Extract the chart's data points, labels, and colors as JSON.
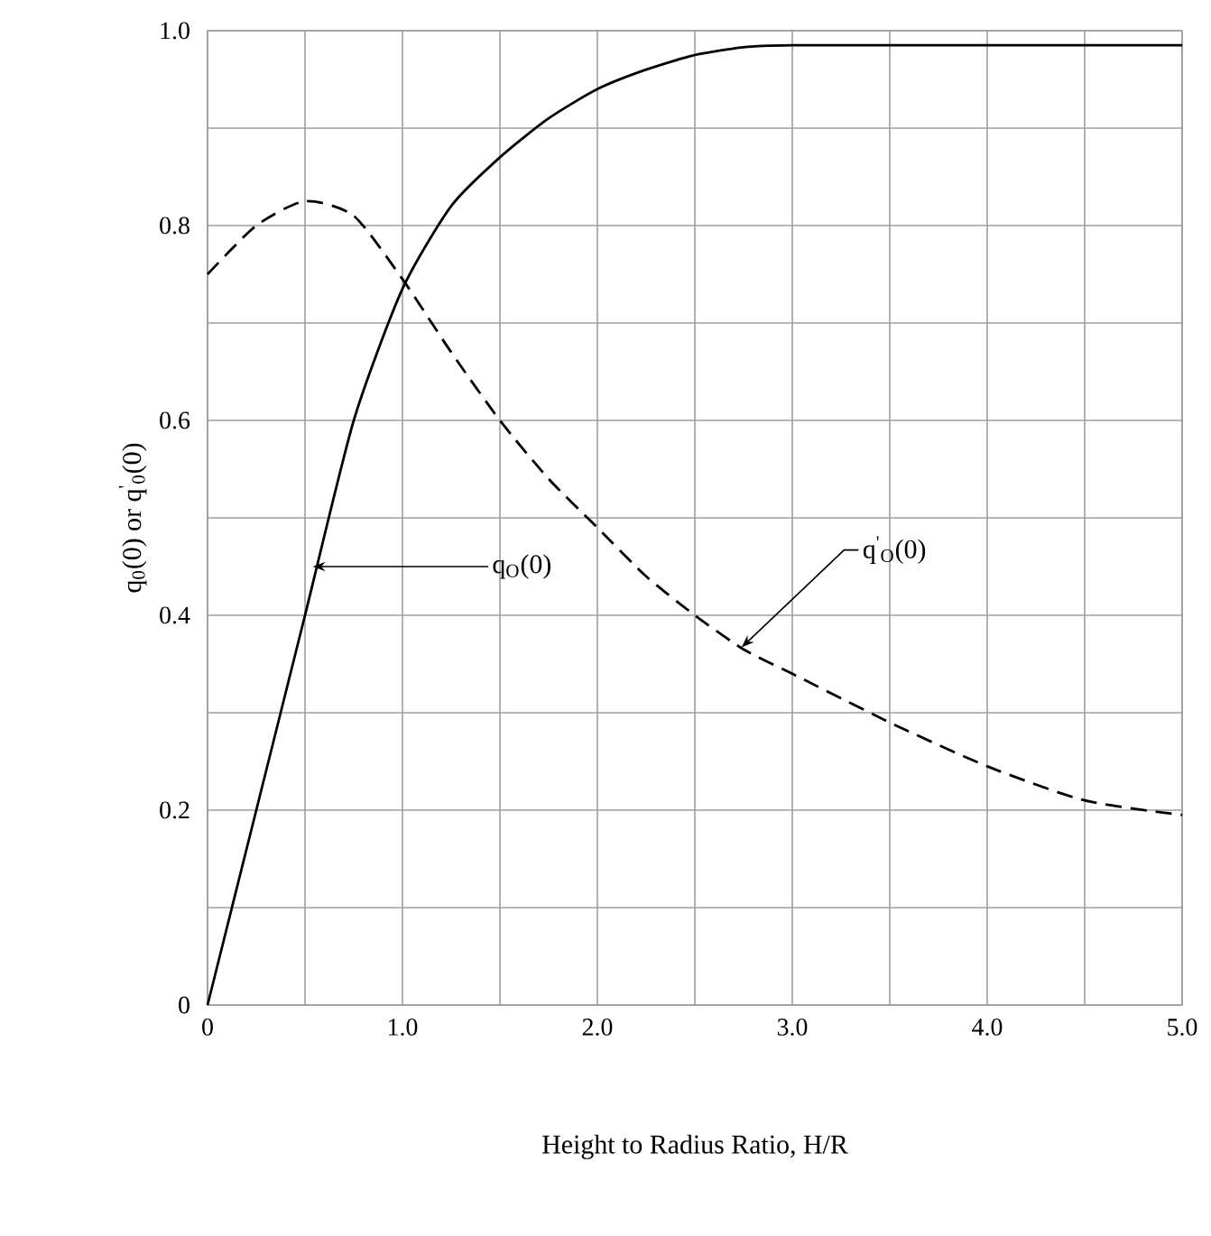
{
  "chart_data": {
    "type": "line",
    "xlabel": "Height to Radius Ratio,   H/R",
    "ylabel": "q$_{0}$(0)   or  q$^{'}$$_{0}$(0)",
    "x": [
      0,
      0.25,
      0.5,
      0.75,
      1.0,
      1.25,
      1.5,
      1.75,
      2.0,
      2.25,
      2.5,
      2.75,
      3.0,
      3.5,
      4.0,
      4.5,
      5.0
    ],
    "series": [
      {
        "color": "#000000",
        "line_style": "solid",
        "values": [
          0,
          0.2,
          0.4,
          0.6,
          0.735,
          0.82,
          0.87,
          0.91,
          0.94,
          0.96,
          0.975,
          0.983,
          0.985,
          0.985,
          0.985,
          0.985,
          0.985
        ]
      },
      {
        "color": "#000000",
        "line_style": "dashed",
        "values": [
          0.75,
          0.8,
          0.825,
          0.81,
          0.745,
          0.67,
          0.6,
          0.54,
          0.49,
          0.44,
          0.4,
          0.365,
          0.34,
          0.29,
          0.245,
          0.21,
          0.195
        ]
      }
    ],
    "annotations": [
      {
        "text": "q$_{O}$(0)",
        "x": 0.54,
        "y": 0.45
      },
      {
        "text": "q$^{'}$$_{O}$(0)",
        "x": 2.74,
        "y": 0.367
      }
    ],
    "xlim": [
      0,
      5
    ],
    "ylim": [
      0,
      1
    ],
    "xticks": [
      0,
      {
        "value": 0.5,
        "label": null
      },
      {
        "value": 1,
        "label": "1.0"
      },
      {
        "value": 1.5,
        "label": null
      },
      {
        "value": 2,
        "label": "2.0"
      },
      {
        "value": 2.5,
        "label": null
      },
      {
        "value": 3,
        "label": "3.0"
      },
      {
        "value": 3.5,
        "label": null
      },
      {
        "value": 4,
        "label": "4.0"
      },
      {
        "value": 4.5,
        "label": null
      },
      {
        "value": 5,
        "label": "5.0"
      }
    ],
    "yticks": [
      0,
      {
        "value": 0.1,
        "label": null
      },
      0.2,
      {
        "value": 0.3,
        "label": null
      },
      0.4,
      {
        "value": 0.5,
        "label": null
      },
      0.6,
      {
        "value": 0.7,
        "label": null
      },
      0.8,
      {
        "value": 0.9,
        "label": null
      },
      {
        "value": 1,
        "label": "1.0"
      }
    ],
    "grid": true,
    "marker": "none"
  }
}
